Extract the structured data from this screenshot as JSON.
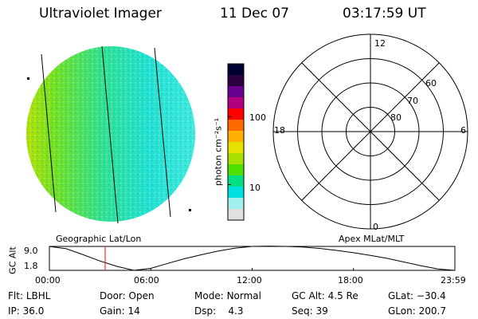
{
  "header": {
    "instrument": "Ultraviolet Imager",
    "date": "11 Dec 07",
    "time": "03:17:59 UT"
  },
  "colorbar": {
    "label": "photon cm⁻²s⁻¹",
    "ticks": [
      {
        "value": 100,
        "label": "100"
      },
      {
        "value": 10,
        "label": "10"
      }
    ],
    "scale": "log",
    "colors": [
      "#000033",
      "#2a0040",
      "#6a0090",
      "#b00080",
      "#ff0000",
      "#ff6a00",
      "#ffb000",
      "#e8e000",
      "#a8e000",
      "#50e000",
      "#00e080",
      "#00e0e0",
      "#a0f0f0",
      "#e0e0e0"
    ]
  },
  "polar_plot": {
    "mlt_labels": [
      {
        "mlt": 12,
        "label": "12"
      },
      {
        "mlt": 6,
        "label": "6"
      },
      {
        "mlt": 18,
        "label": "18"
      },
      {
        "mlt": 0,
        "label": "0"
      }
    ],
    "lat_labels": [
      {
        "lat": 60,
        "label": "60"
      },
      {
        "lat": 70,
        "label": "70"
      },
      {
        "lat": 80,
        "label": "80"
      }
    ]
  },
  "altitude_plot": {
    "left_title": "Geographic Lat/Lon",
    "right_title": "Apex MLat/MLT",
    "ylabel": "GC Alt",
    "y_ticks": [
      "9.0",
      "1.8"
    ],
    "ylim": [
      1.8,
      9.0
    ],
    "x_ticks": [
      "00:00",
      "06:00",
      "12:00",
      "18:00",
      "23:59"
    ],
    "current_time_hours": 3.3,
    "marker_color": "#ff0000",
    "altitude_curve": [
      [
        0,
        9.0
      ],
      [
        1,
        8.3
      ],
      [
        2,
        6.5
      ],
      [
        3,
        4.6
      ],
      [
        4,
        3.0
      ],
      [
        5,
        1.8
      ],
      [
        6,
        2.4
      ],
      [
        7,
        3.9
      ],
      [
        8,
        5.3
      ],
      [
        9,
        6.5
      ],
      [
        10,
        7.6
      ],
      [
        11,
        8.5
      ],
      [
        12,
        9.0
      ],
      [
        13,
        9.1
      ],
      [
        14,
        9.0
      ],
      [
        15,
        8.8
      ],
      [
        16,
        8.4
      ],
      [
        17,
        7.8
      ],
      [
        18,
        7.1
      ],
      [
        19,
        6.3
      ],
      [
        20,
        5.4
      ],
      [
        21,
        4.3
      ],
      [
        22,
        3.2
      ],
      [
        23,
        2.2
      ],
      [
        23.98,
        1.8
      ]
    ]
  },
  "metadata": {
    "flt_label": "Flt:",
    "flt_value": "LBHL",
    "door_label": "Door:",
    "door_value": "Open",
    "mode_label": "Mode:",
    "mode_value": "Normal",
    "gcalt_label": "GC Alt:",
    "gcalt_value": "4.5 Re",
    "glat_label": "GLat:",
    "glat_value": "−30.4",
    "ip_label": "IP:",
    "ip_value": "36.0",
    "gain_label": "Gain:",
    "gain_value": "14",
    "dsp_label": "Dsp:",
    "dsp_value": "4.3",
    "seq_label": "Seq:",
    "seq_value": "39",
    "glon_label": "GLon:",
    "glon_value": "200.7"
  }
}
